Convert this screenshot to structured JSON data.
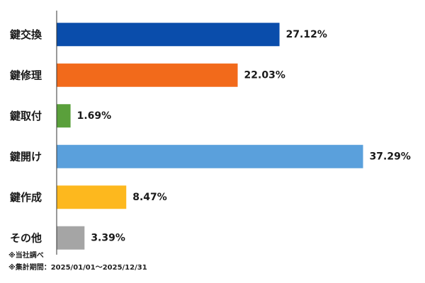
{
  "chart_data": {
    "type": "bar",
    "orientation": "horizontal",
    "categories": [
      "鍵交換",
      "鍵修理",
      "鍵取付",
      "鍵開け",
      "鍵作成",
      "その他"
    ],
    "values": [
      27.12,
      22.03,
      1.69,
      37.29,
      8.47,
      3.39
    ],
    "value_labels": [
      "27.12%",
      "22.03%",
      "1.69%",
      "37.29%",
      "8.47%",
      "3.39%"
    ],
    "colors": [
      "#0a4dab",
      "#f26a1b",
      "#5aa03b",
      "#5aa0dc",
      "#fdb81e",
      "#a5a5a5"
    ],
    "title": "",
    "xlabel": "",
    "ylabel": "",
    "xlim": [
      0,
      40
    ],
    "grid": false,
    "legend": "none"
  },
  "notes": {
    "source": "※当社調べ",
    "period": "※集計期間：2025/01/01〜2025/12/31"
  }
}
